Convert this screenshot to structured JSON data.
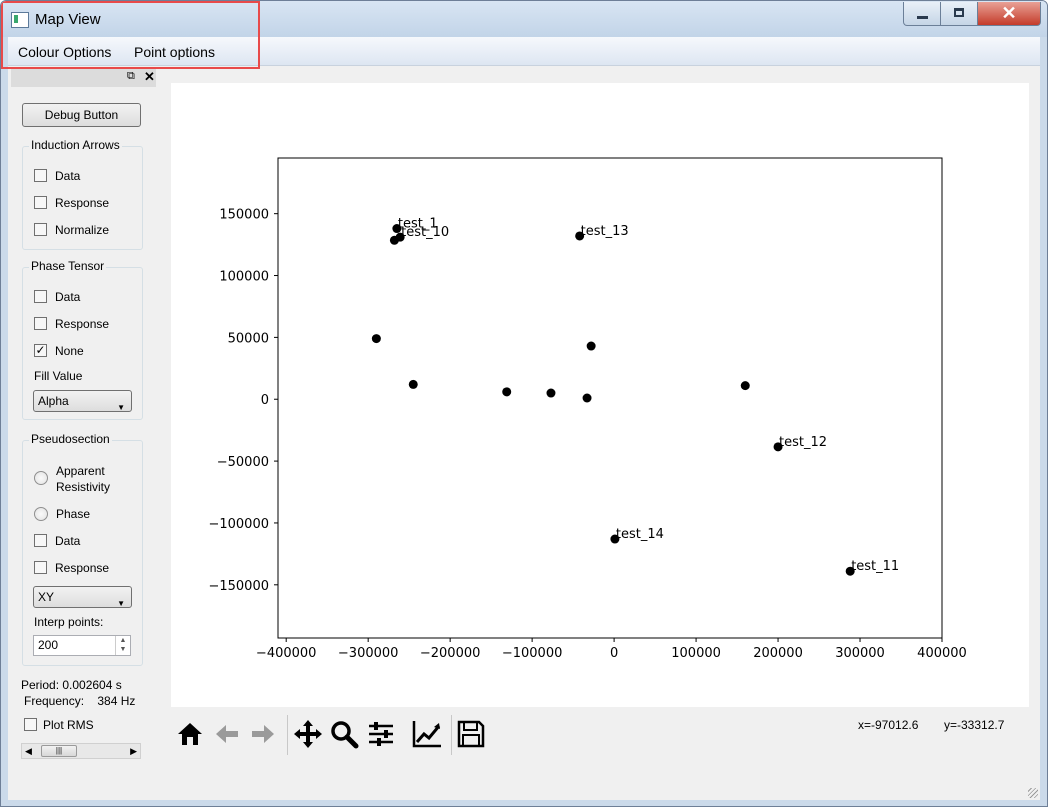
{
  "window": {
    "title": "Map View",
    "close_label": "✕"
  },
  "menu": {
    "items": [
      "Colour Options",
      "Point options"
    ]
  },
  "dock": {
    "float_icon": "⧉",
    "close_icon": "✕"
  },
  "debug_button": {
    "label": "Debug Button"
  },
  "induction_arrows": {
    "title": "Induction Arrows",
    "options": [
      {
        "label": "Data",
        "checked": false
      },
      {
        "label": "Response",
        "checked": false
      },
      {
        "label": "Normalize",
        "checked": false
      }
    ]
  },
  "phase_tensor": {
    "title": "Phase Tensor",
    "options": [
      {
        "label": "Data",
        "checked": false
      },
      {
        "label": "Response",
        "checked": false
      },
      {
        "label": "None",
        "checked": true
      }
    ],
    "fill_label": "Fill Value",
    "fill_value": "Alpha"
  },
  "pseudosection": {
    "title": "Pseudosection",
    "radio_apparent_line1": "Apparent",
    "radio_apparent_line2": "Resistivity",
    "radio_phase": "Phase",
    "check_data": "Data",
    "check_response": "Response",
    "component": "XY",
    "interp_label": "Interp points:",
    "interp_value": "200"
  },
  "period_text": "Period: 0.002604 s",
  "frequency_text": "Frequency:    384 Hz",
  "plot_rms": {
    "label": "Plot RMS",
    "checked": false
  },
  "toolbar": {
    "icons": [
      "home-icon",
      "back-arrow-icon",
      "forward-arrow-icon",
      "pan-icon",
      "zoom-icon",
      "configure-subplots-icon",
      "edit-axis-icon",
      "save-icon"
    ],
    "coord_x": "x=-97012.6",
    "coord_y": "y=-33312.7"
  },
  "chart_data": {
    "type": "scatter",
    "title": "",
    "xlabel": "",
    "ylabel": "",
    "xlim": [
      -410000,
      400000
    ],
    "ylim": [
      -193000,
      195000
    ],
    "xticks": [
      -400000,
      -300000,
      -200000,
      -100000,
      0,
      100000,
      200000,
      300000,
      400000
    ],
    "xtick_labels": [
      "−400000",
      "−300000",
      "−200000",
      "−100000",
      "0",
      "100000",
      "200000",
      "300000",
      "400000"
    ],
    "yticks": [
      150000,
      100000,
      50000,
      0,
      -50000,
      -100000,
      -150000
    ],
    "ytick_labels": [
      "150000",
      "100000",
      "50000",
      "0",
      "−50000",
      "−100000",
      "−150000"
    ],
    "grid": false,
    "marker_color": "#000000",
    "points": [
      {
        "x": -265000,
        "y": 138000,
        "label": "test_1"
      },
      {
        "x": -268000,
        "y": 128500,
        "label": ""
      },
      {
        "x": -261000,
        "y": 131000,
        "label": "test_10"
      },
      {
        "x": -42000,
        "y": 132000,
        "label": "test_13"
      },
      {
        "x": -290000,
        "y": 49000,
        "label": ""
      },
      {
        "x": -245000,
        "y": 12000,
        "label": ""
      },
      {
        "x": -131000,
        "y": 6000,
        "label": ""
      },
      {
        "x": -77000,
        "y": 5000,
        "label": ""
      },
      {
        "x": -28000,
        "y": 43000,
        "label": ""
      },
      {
        "x": -33000,
        "y": 1000,
        "label": ""
      },
      {
        "x": 160000,
        "y": 11000,
        "label": ""
      },
      {
        "x": 200000,
        "y": -38500,
        "label": "test_12"
      },
      {
        "x": 1000,
        "y": -113000,
        "label": "test_14"
      },
      {
        "x": 288000,
        "y": -139000,
        "label": "test_11"
      }
    ]
  }
}
